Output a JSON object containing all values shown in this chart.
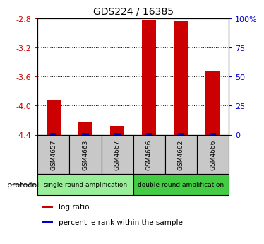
{
  "title": "GDS224 / 16385",
  "samples": [
    "GSM4657",
    "GSM4663",
    "GSM4667",
    "GSM4656",
    "GSM4662",
    "GSM4666"
  ],
  "log_ratio": [
    -3.93,
    -4.22,
    -4.28,
    -2.82,
    -2.84,
    -3.52
  ],
  "percentile_rank": [
    1.5,
    1.5,
    1.5,
    1.5,
    1.5,
    1.5
  ],
  "ylim_left": [
    -4.4,
    -2.8
  ],
  "ylim_right": [
    0,
    100
  ],
  "yticks_left": [
    -4.4,
    -4.0,
    -3.6,
    -3.2,
    -2.8
  ],
  "yticks_right": [
    0,
    25,
    50,
    75,
    100
  ],
  "ytick_labels_left": [
    "-4.4",
    "-4.0",
    "-3.6",
    "-3.2",
    "-2.8"
  ],
  "ytick_labels_right": [
    "0",
    "25",
    "50",
    "75",
    "100%"
  ],
  "gridline_vals": [
    -4.0,
    -3.6,
    -3.2
  ],
  "bar_color_red": "#cc0000",
  "bar_color_blue": "#0000cc",
  "bar_width": 0.45,
  "blue_bar_width": 0.2,
  "protocol_groups": [
    {
      "label": "single round amplification",
      "indices": [
        0,
        1,
        2
      ],
      "color": "#99ee99"
    },
    {
      "label": "double round amplification",
      "indices": [
        3,
        4,
        5
      ],
      "color": "#44cc44"
    }
  ],
  "protocol_label": "protocol",
  "legend_items": [
    {
      "color": "#cc0000",
      "label": "log ratio"
    },
    {
      "color": "#0000cc",
      "label": "percentile rank within the sample"
    }
  ],
  "sample_box_color": "#c8c8c8",
  "background_color": "#ffffff",
  "left_tick_color": "#cc0000",
  "right_tick_color": "#0000cc"
}
